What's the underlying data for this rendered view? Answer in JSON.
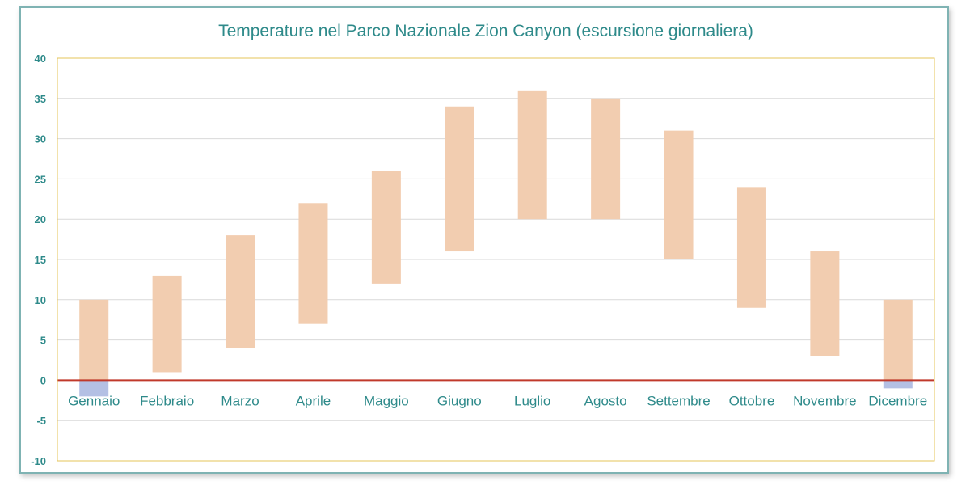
{
  "chart_data": {
    "type": "bar",
    "title": "Temperature nel Parco Nazionale Zion Canyon (escursione giornaliera)",
    "categories": [
      "Gennaio",
      "Febbraio",
      "Marzo",
      "Aprile",
      "Maggio",
      "Giugno",
      "Luglio",
      "Agosto",
      "Settembre",
      "Ottobre",
      "Novembre",
      "Dicembre"
    ],
    "series": [
      {
        "low": [
          -2,
          1,
          4,
          7,
          12,
          16,
          20,
          20,
          15,
          9,
          3,
          -1
        ],
        "high": [
          10,
          13,
          18,
          22,
          26,
          34,
          36,
          35,
          31,
          24,
          16,
          10
        ]
      }
    ],
    "ylim": [
      -10,
      40
    ],
    "yticks": [
      -10,
      -5,
      0,
      5,
      10,
      15,
      20,
      25,
      30,
      35,
      40
    ],
    "grid": true,
    "legend": "none",
    "colors": {
      "positive_bar": "#f2cdb0",
      "negative_bar": "#b4c0e4",
      "zero_line": "#c0392b",
      "grid": "#d9d9d9",
      "plot_border": "#e6c45a",
      "text": "#2e8a8a",
      "frame_border": "#7fb3b3"
    }
  }
}
